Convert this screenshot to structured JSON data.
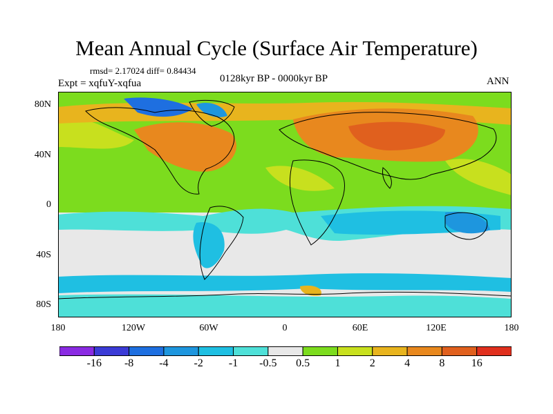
{
  "title": "Mean Annual Cycle (Surface Air Temperature)",
  "stats": "rmsd= 2.17024 diff= 0.84434",
  "experiment": "Expt = xqfuY-xqfua",
  "period": "0128kyr BP - 0000kyr BP",
  "season": "ANN",
  "y_axis": {
    "ticks": [
      "80N",
      "40N",
      "0",
      "40S",
      "80S"
    ],
    "values": [
      80,
      40,
      0,
      -40,
      -80
    ],
    "range": [
      -90,
      90
    ]
  },
  "x_axis": {
    "ticks": [
      "180",
      "120W",
      "60W",
      "0",
      "60E",
      "120E",
      "180"
    ],
    "values": [
      -180,
      -120,
      -60,
      0,
      60,
      120,
      180
    ],
    "range": [
      -180,
      180
    ]
  },
  "colorbar": {
    "colors": [
      "#8a2be2",
      "#3b3bd6",
      "#1e6fe0",
      "#1e96de",
      "#1fbfe2",
      "#4ee0d8",
      "#e8e8e8",
      "#7cdc1e",
      "#c8e01e",
      "#e8b41e",
      "#e8881e",
      "#e0601e",
      "#e0301e"
    ],
    "labels": [
      "-16",
      "-8",
      "-4",
      "-2",
      "-1",
      "-0.5",
      "0.5",
      "1",
      "2",
      "4",
      "8",
      "16"
    ],
    "levels": [
      -16,
      -8,
      -4,
      -2,
      -1,
      -0.5,
      0.5,
      1,
      2,
      4,
      8,
      16
    ]
  },
  "colors": {
    "neutral": "#e8e8e8",
    "warm1": "#7cdc1e",
    "warm2": "#c8e01e",
    "warm3": "#e8b41e",
    "warm4": "#e8881e",
    "cool1": "#4ee0d8",
    "cool2": "#1fbfe2",
    "cool3": "#1e96de",
    "cool4": "#1e6fe0",
    "cool5": "#3b3bd6"
  }
}
